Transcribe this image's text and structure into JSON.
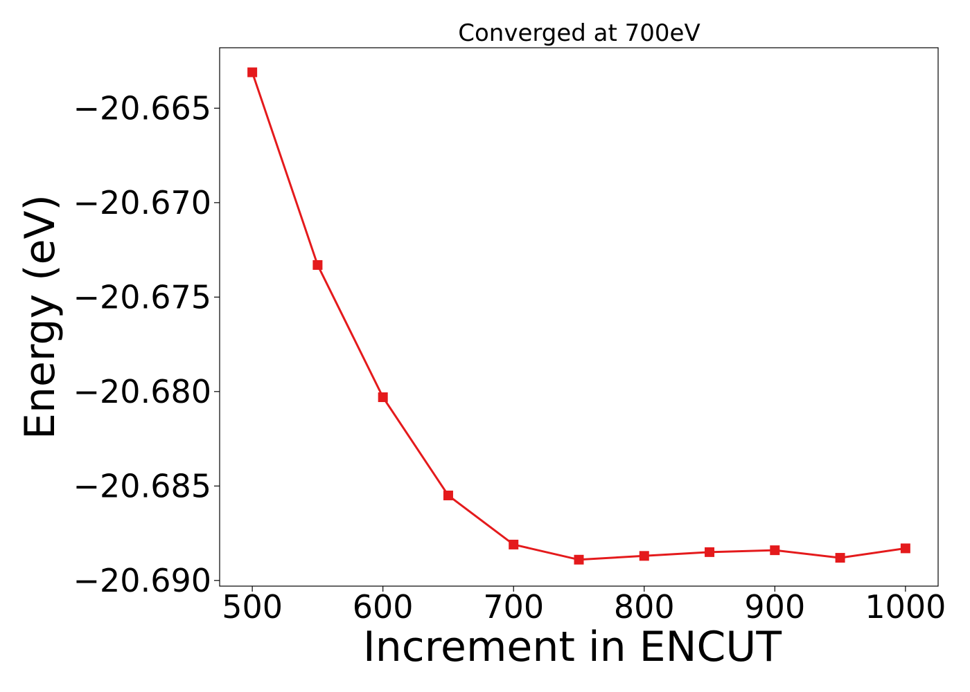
{
  "chart_data": {
    "type": "line",
    "title": "Converged at 700eV",
    "xlabel": "Increment in ENCUT",
    "ylabel": "Energy (eV)",
    "xlim": [
      475,
      1025
    ],
    "ylim": [
      -20.6903,
      -20.6618
    ],
    "xticks": [
      500,
      600,
      700,
      800,
      900,
      1000
    ],
    "xtick_labels": [
      "500",
      "600",
      "700",
      "800",
      "900",
      "1000"
    ],
    "yticks": [
      -20.665,
      -20.67,
      -20.675,
      -20.68,
      -20.685,
      -20.69
    ],
    "ytick_labels": [
      "−20.665",
      "−20.670",
      "−20.675",
      "−20.680",
      "−20.685",
      "−20.690"
    ],
    "grid": false,
    "legend": "none",
    "series": [
      {
        "color": "#e41a1c",
        "marker": "square",
        "x": [
          500,
          550,
          600,
          650,
          700,
          750,
          800,
          850,
          900,
          950,
          1000
        ],
        "y": [
          -20.6631,
          -20.6733,
          -20.6803,
          -20.6855,
          -20.6881,
          -20.6889,
          -20.6887,
          -20.6885,
          -20.6884,
          -20.6888,
          -20.6883
        ]
      }
    ]
  }
}
